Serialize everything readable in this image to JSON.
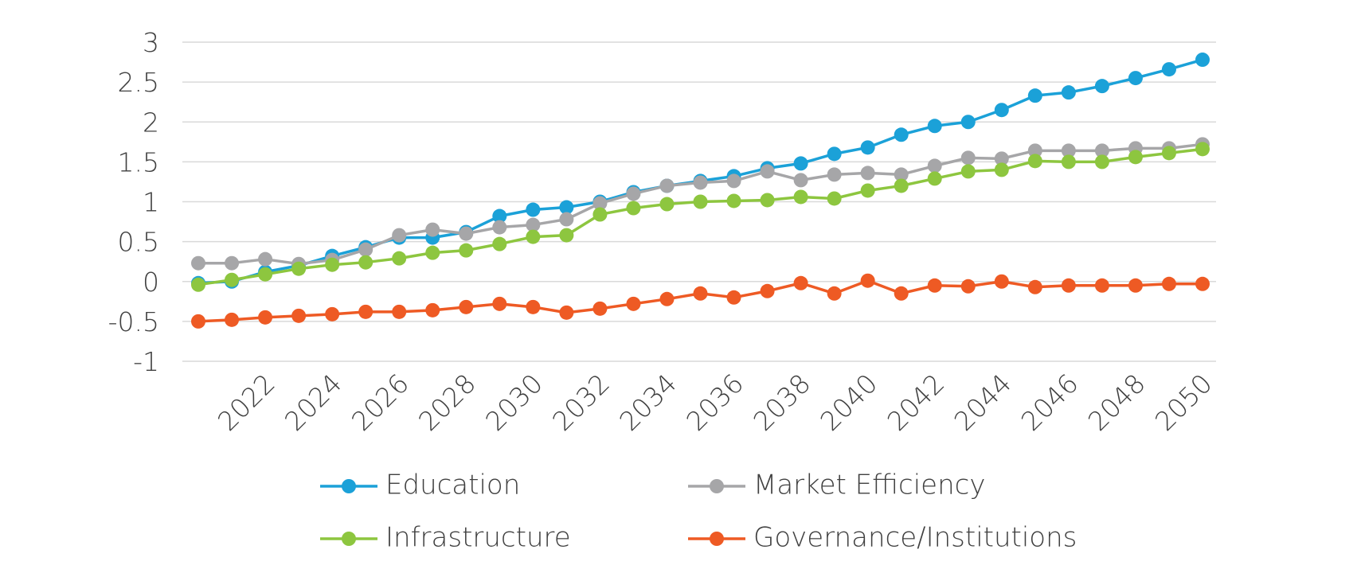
{
  "chart_data": {
    "type": "line",
    "x": [
      2020,
      2021,
      2022,
      2023,
      2024,
      2025,
      2026,
      2027,
      2028,
      2029,
      2030,
      2031,
      2032,
      2033,
      2034,
      2035,
      2036,
      2037,
      2038,
      2039,
      2040,
      2041,
      2042,
      2043,
      2044,
      2045,
      2046,
      2047,
      2048,
      2049,
      2050
    ],
    "xlim": [
      2020,
      2050
    ],
    "xticks": [
      2022,
      2024,
      2026,
      2028,
      2030,
      2032,
      2034,
      2036,
      2038,
      2040,
      2042,
      2044,
      2046,
      2048,
      2050
    ],
    "ylim": [
      -1,
      3
    ],
    "yticks": [
      -1,
      -0.5,
      0,
      0.5,
      1,
      1.5,
      2,
      2.5,
      3
    ],
    "grid": true,
    "legend": "bottom",
    "series": [
      {
        "name": "Education",
        "color": "#1ba1d8",
        "values": [
          -0.02,
          0.0,
          0.12,
          0.2,
          0.32,
          0.43,
          0.55,
          0.55,
          0.62,
          0.82,
          0.9,
          0.93,
          1.0,
          1.12,
          1.2,
          1.26,
          1.32,
          1.42,
          1.48,
          1.6,
          1.68,
          1.84,
          1.95,
          2.0,
          2.15,
          2.33,
          2.37,
          2.45,
          2.55,
          2.66,
          2.78
        ]
      },
      {
        "name": "Market Efficiency",
        "color": "#a6a6a8",
        "values": [
          0.23,
          0.23,
          0.28,
          0.22,
          0.27,
          0.4,
          0.58,
          0.65,
          0.6,
          0.68,
          0.71,
          0.78,
          0.98,
          1.1,
          1.2,
          1.24,
          1.26,
          1.38,
          1.27,
          1.34,
          1.36,
          1.34,
          1.45,
          1.55,
          1.54,
          1.64,
          1.64,
          1.64,
          1.67,
          1.67,
          1.72
        ]
      },
      {
        "name": "Infrastructure",
        "color": "#8dc63f",
        "values": [
          -0.04,
          0.02,
          0.09,
          0.16,
          0.21,
          0.24,
          0.29,
          0.36,
          0.39,
          0.47,
          0.56,
          0.58,
          0.84,
          0.92,
          0.97,
          1.0,
          1.01,
          1.02,
          1.06,
          1.04,
          1.14,
          1.2,
          1.29,
          1.38,
          1.4,
          1.51,
          1.5,
          1.5,
          1.56,
          1.61,
          1.66
        ]
      },
      {
        "name": "Governance/Institutions",
        "color": "#ee5a24",
        "values": [
          -0.5,
          -0.48,
          -0.45,
          -0.43,
          -0.41,
          -0.38,
          -0.38,
          -0.36,
          -0.32,
          -0.28,
          -0.32,
          -0.39,
          -0.34,
          -0.28,
          -0.22,
          -0.15,
          -0.2,
          -0.12,
          -0.02,
          -0.15,
          0.01,
          -0.15,
          -0.05,
          -0.06,
          0.0,
          -0.07,
          -0.05,
          -0.05,
          -0.05,
          -0.03,
          -0.03
        ]
      }
    ]
  }
}
